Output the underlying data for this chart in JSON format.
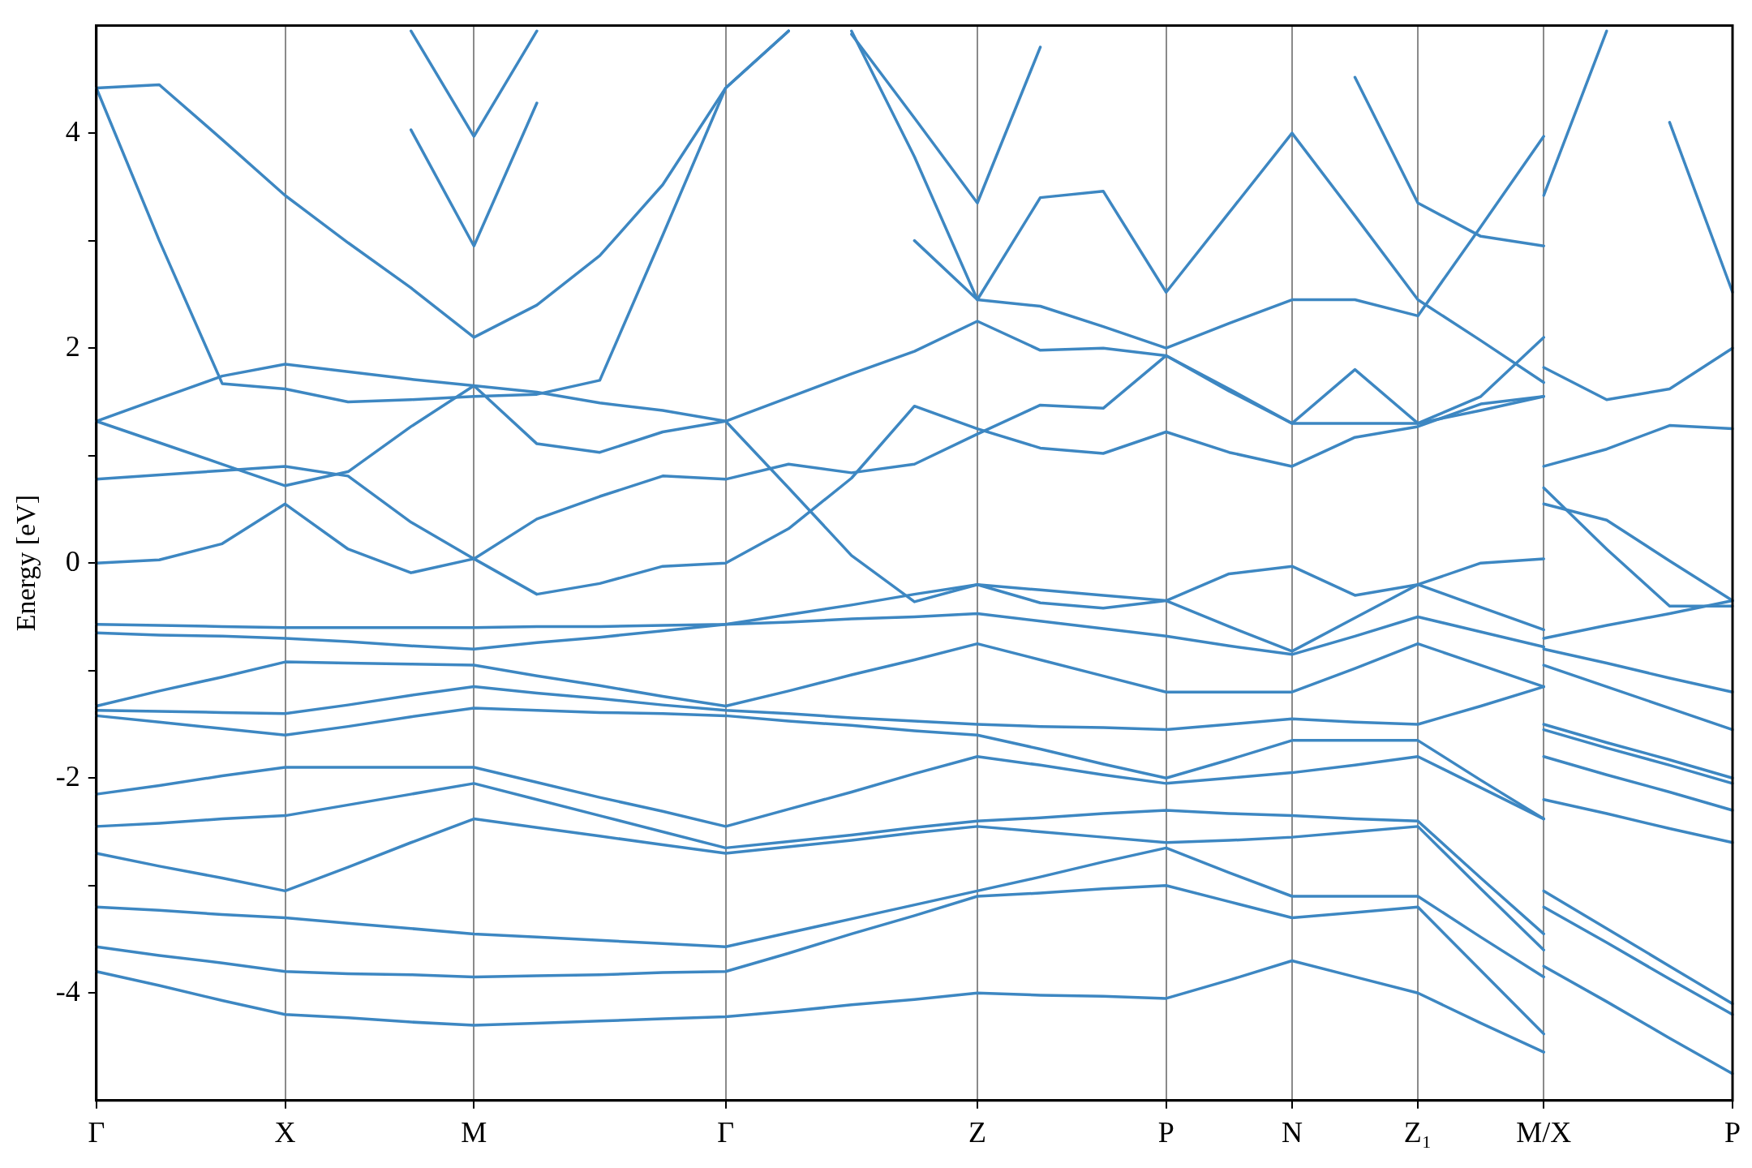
{
  "chart_data": {
    "type": "line",
    "ylabel": "Energy [eV]",
    "ylim": [
      -5,
      5
    ],
    "categories": [
      "Γ",
      null,
      null,
      "X",
      null,
      null,
      "M",
      null,
      null,
      null,
      "Γ",
      null,
      null,
      null,
      "Z",
      null,
      null,
      "P",
      null,
      "N",
      null,
      "Z₁",
      null,
      "M/X",
      null,
      null,
      "P"
    ],
    "yticks": [
      -4,
      {
        "value": -3,
        "label": null
      },
      -2,
      {
        "value": -1,
        "label": null
      },
      0,
      {
        "value": 1,
        "label": null
      },
      2,
      {
        "value": 3,
        "label": null
      },
      4
    ],
    "grid": "x",
    "legend": false,
    "marker": "none",
    "line_style": "solid",
    "series": [
      {
        "color": "#3d87c2",
        "values": [
          0,
          0.03,
          0.18,
          0.55,
          0.13,
          -0.09,
          0.04,
          -0.29,
          -0.19,
          -0.03,
          0,
          0.32,
          0.79,
          1.46,
          1.25,
          1.07,
          1.02,
          1.22,
          1.03,
          0.9,
          1.17,
          1.27,
          1.48,
          1.55,
          null,
          null,
          null
        ]
      },
      {
        "color": "#3d87c2",
        "values": [
          0.78,
          0.82,
          0.86,
          0.9,
          0.81,
          0.38,
          0.04,
          0.41,
          0.62,
          0.81,
          0.78,
          0.92,
          0.84,
          0.92,
          1.2,
          1.47,
          1.44,
          1.93,
          1.6,
          1.3,
          1.8,
          1.3,
          1.55,
          2.1,
          null,
          null,
          null
        ]
      },
      {
        "color": "#3d87c2",
        "values": [
          1.32,
          1.12,
          0.92,
          0.72,
          0.85,
          1.27,
          1.65,
          1.11,
          1.03,
          1.22,
          1.32,
          0.7,
          0.07,
          -0.36,
          -0.2,
          -0.37,
          -0.42,
          -0.35,
          -0.1,
          -0.03,
          -0.3,
          -0.2,
          0,
          0.04,
          null,
          null,
          null
        ]
      },
      {
        "color": "#3d87c2",
        "values": [
          4.42,
          3.0,
          1.67,
          1.62,
          1.5,
          1.52,
          1.55,
          1.57,
          1.7,
          3.05,
          4.42,
          4.95,
          null,
          null,
          null,
          null,
          null,
          null,
          null,
          null,
          null,
          null,
          null,
          null,
          null,
          null,
          null
        ]
      },
      {
        "color": "#3d87c2",
        "values": [
          1.32,
          1.53,
          1.74,
          1.85,
          1.78,
          1.71,
          1.65,
          1.59,
          1.49,
          1.42,
          1.32,
          1.54,
          1.76,
          1.97,
          2.25,
          1.98,
          2.0,
          1.93,
          1.62,
          1.3,
          1.3,
          1.3,
          1.42,
          1.55,
          null,
          null,
          null
        ]
      },
      {
        "color": "#3d87c2",
        "values": [
          4.42,
          4.45,
          3.94,
          3.42,
          2.98,
          2.56,
          2.1,
          2.4,
          2.86,
          3.52,
          4.42,
          4.95,
          null,
          null,
          null,
          null,
          null,
          null,
          null,
          null,
          null,
          null,
          null,
          null,
          null,
          null,
          null
        ]
      },
      {
        "color": "#3d87c2",
        "values": [
          null,
          null,
          null,
          null,
          null,
          4.03,
          2.95,
          4.28,
          null,
          null,
          null,
          null,
          null,
          null,
          null,
          null,
          null,
          null,
          null,
          null,
          null,
          null,
          null,
          null,
          null,
          null,
          null
        ]
      },
      {
        "color": "#3d87c2",
        "values": [
          null,
          null,
          null,
          null,
          null,
          4.95,
          3.97,
          4.95,
          null,
          null,
          null,
          null,
          null,
          null,
          null,
          null,
          null,
          null,
          null,
          null,
          null,
          null,
          null,
          null,
          null,
          null,
          null
        ]
      },
      {
        "color": "#3d87c2",
        "values": [
          null,
          null,
          null,
          null,
          null,
          null,
          null,
          null,
          null,
          null,
          null,
          null,
          4.92,
          4.14,
          3.35,
          4.8,
          null,
          null,
          null,
          null,
          null,
          null,
          null,
          null,
          null,
          null,
          null
        ]
      },
      {
        "color": "#3d87c2",
        "values": [
          null,
          null,
          null,
          null,
          null,
          null,
          null,
          null,
          null,
          null,
          null,
          null,
          4.95,
          3.78,
          2.45,
          3.4,
          3.46,
          2.52,
          3.26,
          4.0,
          3.23,
          2.45,
          2.07,
          1.68,
          null,
          null,
          null
        ]
      },
      {
        "color": "#3d87c2",
        "values": [
          null,
          null,
          null,
          null,
          null,
          null,
          null,
          null,
          null,
          null,
          null,
          null,
          null,
          3.0,
          2.45,
          2.39,
          2.2,
          2.0,
          2.23,
          2.45,
          2.45,
          2.3,
          3.13,
          3.97,
          null,
          null,
          null
        ]
      },
      {
        "color": "#3d87c2",
        "values": [
          null,
          null,
          null,
          null,
          null,
          null,
          null,
          null,
          null,
          null,
          null,
          null,
          null,
          null,
          null,
          null,
          null,
          null,
          null,
          null,
          4.52,
          3.35,
          3.04,
          2.95,
          null,
          null,
          null
        ]
      },
      {
        "color": "#3d87c2",
        "values": [
          null,
          null,
          null,
          null,
          null,
          null,
          null,
          null,
          null,
          null,
          null,
          null,
          null,
          null,
          null,
          null,
          null,
          null,
          null,
          null,
          null,
          null,
          null,
          3.42,
          4.95,
          null,
          null
        ]
      },
      {
        "color": "#3d87c2",
        "values": [
          null,
          null,
          null,
          null,
          null,
          null,
          null,
          null,
          null,
          null,
          null,
          null,
          null,
          null,
          null,
          null,
          null,
          null,
          null,
          null,
          null,
          null,
          null,
          null,
          null,
          4.1,
          2.52
        ]
      },
      {
        "color": "#3d87c2",
        "values": [
          null,
          null,
          null,
          null,
          null,
          null,
          null,
          null,
          null,
          null,
          null,
          null,
          null,
          null,
          null,
          null,
          null,
          null,
          null,
          null,
          null,
          null,
          null,
          1.82,
          1.52,
          1.62,
          2.0
        ]
      },
      {
        "color": "#3d87c2",
        "values": [
          null,
          null,
          null,
          null,
          null,
          null,
          null,
          null,
          null,
          null,
          null,
          null,
          null,
          null,
          null,
          null,
          null,
          null,
          null,
          null,
          null,
          null,
          null,
          0.9,
          1.06,
          1.28,
          1.25
        ]
      },
      {
        "color": "#3d87c2",
        "values": [
          null,
          null,
          null,
          null,
          null,
          null,
          null,
          null,
          null,
          null,
          null,
          null,
          null,
          null,
          null,
          null,
          null,
          null,
          null,
          null,
          null,
          null,
          null,
          0.7,
          0.13,
          -0.4,
          -0.4
        ]
      },
      {
        "color": "#3d87c2",
        "values": [
          null,
          null,
          null,
          null,
          null,
          null,
          null,
          null,
          null,
          null,
          null,
          null,
          null,
          null,
          null,
          null,
          null,
          null,
          null,
          null,
          null,
          null,
          null,
          0.55,
          0.4,
          0.02,
          -0.35
        ]
      },
      {
        "color": "#3d87c2",
        "values": [
          -0.57,
          -0.58,
          -0.59,
          -0.6,
          -0.6,
          -0.6,
          -0.6,
          -0.59,
          -0.59,
          -0.58,
          -0.57,
          -0.48,
          -0.39,
          -0.29,
          -0.2,
          -0.25,
          -0.3,
          -0.35,
          -0.59,
          -0.82,
          -0.51,
          -0.2,
          -0.41,
          -0.62,
          null,
          null,
          null
        ]
      },
      {
        "color": "#3d87c2",
        "values": [
          -0.65,
          -0.67,
          -0.68,
          -0.7,
          -0.73,
          -0.77,
          -0.8,
          -0.74,
          -0.69,
          -0.63,
          -0.57,
          -0.55,
          -0.52,
          -0.5,
          -0.47,
          -0.54,
          -0.61,
          -0.68,
          -0.77,
          -0.85,
          -0.68,
          -0.5,
          -0.64,
          -0.78,
          null,
          null,
          null
        ]
      },
      {
        "color": "#3d87c2",
        "values": [
          -1.33,
          -1.19,
          -1.06,
          -0.92,
          -0.93,
          -0.94,
          -0.95,
          -1.05,
          -1.14,
          -1.24,
          -1.33,
          -1.19,
          -1.04,
          -0.9,
          -0.75,
          -0.9,
          -1.05,
          -1.2,
          -1.2,
          -1.2,
          -0.98,
          -0.75,
          -0.95,
          -1.15,
          null,
          null,
          null
        ]
      },
      {
        "color": "#3d87c2",
        "values": [
          -1.37,
          -1.38,
          -1.39,
          -1.4,
          -1.32,
          -1.23,
          -1.15,
          -1.21,
          -1.26,
          -1.32,
          -1.37,
          -1.4,
          -1.44,
          -1.47,
          -1.5,
          -1.52,
          -1.53,
          -1.55,
          -1.5,
          -1.45,
          -1.48,
          -1.5,
          -1.33,
          -1.15,
          null,
          null,
          null
        ]
      },
      {
        "color": "#3d87c2",
        "values": [
          -1.42,
          -1.48,
          -1.54,
          -1.6,
          -1.52,
          -1.43,
          -1.35,
          -1.37,
          -1.39,
          -1.4,
          -1.42,
          -1.47,
          -1.51,
          -1.56,
          -1.6,
          -1.73,
          -1.87,
          -2.0,
          -1.83,
          -1.65,
          -1.65,
          -1.65,
          -2.02,
          -2.38,
          null,
          null,
          null
        ]
      },
      {
        "color": "#3d87c2",
        "values": [
          -2.15,
          -2.07,
          -1.98,
          -1.9,
          -1.9,
          -1.9,
          -1.9,
          -2.04,
          -2.18,
          -2.31,
          -2.45,
          -2.29,
          -2.13,
          -1.96,
          -1.8,
          -1.88,
          -1.97,
          -2.05,
          -2.0,
          -1.95,
          -1.88,
          -1.8,
          -2.09,
          -2.38,
          null,
          null,
          null
        ]
      },
      {
        "color": "#3d87c2",
        "values": [
          -2.45,
          -2.42,
          -2.38,
          -2.35,
          -2.25,
          -2.15,
          -2.05,
          -2.2,
          -2.35,
          -2.5,
          -2.65,
          -2.59,
          -2.53,
          -2.46,
          -2.4,
          -2.37,
          -2.33,
          -2.3,
          -2.33,
          -2.35,
          -2.38,
          -2.4,
          -2.93,
          -3.45,
          null,
          null,
          null
        ]
      },
      {
        "color": "#3d87c2",
        "values": [
          -2.7,
          -2.82,
          -2.93,
          -3.05,
          -2.83,
          -2.6,
          -2.38,
          -2.46,
          -2.54,
          -2.62,
          -2.7,
          -2.64,
          -2.58,
          -2.51,
          -2.45,
          -2.5,
          -2.55,
          -2.6,
          -2.58,
          -2.55,
          -2.5,
          -2.45,
          -3.03,
          -3.6,
          null,
          null,
          null
        ]
      },
      {
        "color": "#3d87c2",
        "values": [
          -3.2,
          -3.23,
          -3.27,
          -3.3,
          -3.35,
          -3.4,
          -3.45,
          -3.48,
          -3.51,
          -3.54,
          -3.57,
          -3.44,
          -3.31,
          -3.18,
          -3.05,
          -2.92,
          -2.78,
          -2.65,
          -2.88,
          -3.1,
          -3.1,
          -3.1,
          -3.48,
          -3.85,
          null,
          null,
          null
        ]
      },
      {
        "color": "#3d87c2",
        "values": [
          -3.57,
          -3.65,
          -3.72,
          -3.8,
          -3.82,
          -3.83,
          -3.85,
          -3.84,
          -3.83,
          -3.81,
          -3.8,
          -3.63,
          -3.45,
          -3.28,
          -3.1,
          -3.07,
          -3.03,
          -3.0,
          -3.15,
          -3.3,
          -3.25,
          -3.2,
          -3.79,
          -4.38,
          null,
          null,
          null
        ]
      },
      {
        "color": "#3d87c2",
        "values": [
          -3.8,
          -3.93,
          -4.07,
          -4.2,
          -4.23,
          -4.27,
          -4.3,
          -4.28,
          -4.26,
          -4.24,
          -4.22,
          -4.17,
          -4.11,
          -4.06,
          -4.0,
          -4.02,
          -4.03,
          -4.05,
          -3.88,
          -3.7,
          -3.85,
          -4.0,
          -4.28,
          -4.55,
          null,
          null,
          null
        ]
      },
      {
        "color": "#3d87c2",
        "values": [
          null,
          null,
          null,
          null,
          null,
          null,
          null,
          null,
          null,
          null,
          null,
          null,
          null,
          null,
          null,
          null,
          null,
          null,
          null,
          null,
          null,
          null,
          null,
          -0.7,
          -0.58,
          -0.47,
          -0.35
        ]
      },
      {
        "color": "#3d87c2",
        "values": [
          null,
          null,
          null,
          null,
          null,
          null,
          null,
          null,
          null,
          null,
          null,
          null,
          null,
          null,
          null,
          null,
          null,
          null,
          null,
          null,
          null,
          null,
          null,
          -0.8,
          -0.93,
          -1.07,
          -1.2
        ]
      },
      {
        "color": "#3d87c2",
        "values": [
          null,
          null,
          null,
          null,
          null,
          null,
          null,
          null,
          null,
          null,
          null,
          null,
          null,
          null,
          null,
          null,
          null,
          null,
          null,
          null,
          null,
          null,
          null,
          -0.95,
          -1.15,
          -1.35,
          -1.55
        ]
      },
      {
        "color": "#3d87c2",
        "values": [
          null,
          null,
          null,
          null,
          null,
          null,
          null,
          null,
          null,
          null,
          null,
          null,
          null,
          null,
          null,
          null,
          null,
          null,
          null,
          null,
          null,
          null,
          null,
          -1.5,
          -1.67,
          -1.83,
          -2.0
        ]
      },
      {
        "color": "#3d87c2",
        "values": [
          null,
          null,
          null,
          null,
          null,
          null,
          null,
          null,
          null,
          null,
          null,
          null,
          null,
          null,
          null,
          null,
          null,
          null,
          null,
          null,
          null,
          null,
          null,
          -1.55,
          -1.72,
          -1.88,
          -2.05
        ]
      },
      {
        "color": "#3d87c2",
        "values": [
          null,
          null,
          null,
          null,
          null,
          null,
          null,
          null,
          null,
          null,
          null,
          null,
          null,
          null,
          null,
          null,
          null,
          null,
          null,
          null,
          null,
          null,
          null,
          -1.8,
          -1.97,
          -2.13,
          -2.3
        ]
      },
      {
        "color": "#3d87c2",
        "values": [
          null,
          null,
          null,
          null,
          null,
          null,
          null,
          null,
          null,
          null,
          null,
          null,
          null,
          null,
          null,
          null,
          null,
          null,
          null,
          null,
          null,
          null,
          null,
          -2.2,
          -2.33,
          -2.47,
          -2.6
        ]
      },
      {
        "color": "#3d87c2",
        "values": [
          null,
          null,
          null,
          null,
          null,
          null,
          null,
          null,
          null,
          null,
          null,
          null,
          null,
          null,
          null,
          null,
          null,
          null,
          null,
          null,
          null,
          null,
          null,
          -3.05,
          -3.4,
          -3.75,
          -4.1
        ]
      },
      {
        "color": "#3d87c2",
        "values": [
          null,
          null,
          null,
          null,
          null,
          null,
          null,
          null,
          null,
          null,
          null,
          null,
          null,
          null,
          null,
          null,
          null,
          null,
          null,
          null,
          null,
          null,
          null,
          -3.2,
          -3.53,
          -3.87,
          -4.2
        ]
      },
      {
        "color": "#3d87c2",
        "values": [
          null,
          null,
          null,
          null,
          null,
          null,
          null,
          null,
          null,
          null,
          null,
          null,
          null,
          null,
          null,
          null,
          null,
          null,
          null,
          null,
          null,
          null,
          null,
          -3.75,
          -4.08,
          -4.42,
          -4.75
        ]
      }
    ]
  }
}
